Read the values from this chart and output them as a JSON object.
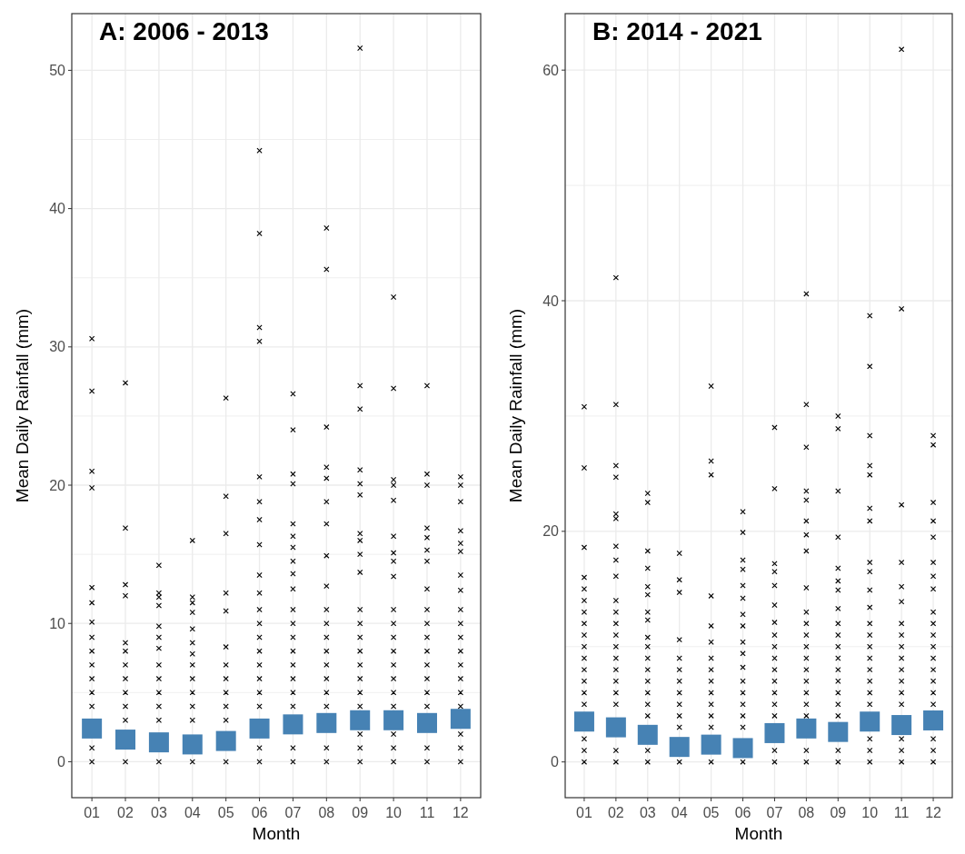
{
  "chart_data": [
    {
      "type": "scatter",
      "title": "A: 2006 - 2013",
      "xlabel": "Month",
      "ylabel": "Mean Daily Rainfall (mm)",
      "categories": [
        "01",
        "02",
        "03",
        "04",
        "05",
        "06",
        "07",
        "08",
        "09",
        "10",
        "11",
        "12"
      ],
      "ylim": [
        -2.6,
        54.1
      ],
      "yticks": [
        0,
        10,
        20,
        30,
        40,
        50
      ],
      "grid": true,
      "series": [
        {
          "type": "scatter",
          "marker": "cross",
          "color": "#000000",
          "x": [
            "01",
            "01",
            "01",
            "01",
            "01",
            "01",
            "01",
            "01",
            "01",
            "01",
            "01",
            "01",
            "01",
            "01",
            "01",
            "02",
            "02",
            "02",
            "02",
            "02",
            "02",
            "02",
            "02",
            "02",
            "02",
            "02",
            "02",
            "03",
            "03",
            "03",
            "03",
            "03",
            "03",
            "03",
            "03",
            "03",
            "03",
            "03",
            "03",
            "03",
            "04",
            "04",
            "04",
            "04",
            "04",
            "04",
            "04",
            "04",
            "04",
            "04",
            "04",
            "04",
            "04",
            "05",
            "05",
            "05",
            "05",
            "05",
            "05",
            "05",
            "05",
            "05",
            "05",
            "05",
            "05",
            "06",
            "06",
            "06",
            "06",
            "06",
            "06",
            "06",
            "06",
            "06",
            "06",
            "06",
            "06",
            "06",
            "06",
            "06",
            "06",
            "06",
            "06",
            "06",
            "06",
            "07",
            "07",
            "07",
            "07",
            "07",
            "07",
            "07",
            "07",
            "07",
            "07",
            "07",
            "07",
            "07",
            "07",
            "07",
            "07",
            "07",
            "07",
            "07",
            "07",
            "08",
            "08",
            "08",
            "08",
            "08",
            "08",
            "08",
            "08",
            "08",
            "08",
            "08",
            "08",
            "08",
            "08",
            "08",
            "08",
            "08",
            "08",
            "08",
            "09",
            "09",
            "09",
            "09",
            "09",
            "09",
            "09",
            "09",
            "09",
            "09",
            "09",
            "09",
            "09",
            "09",
            "09",
            "09",
            "09",
            "09",
            "09",
            "09",
            "09",
            "10",
            "10",
            "10",
            "10",
            "10",
            "10",
            "10",
            "10",
            "10",
            "10",
            "10",
            "10",
            "10",
            "10",
            "10",
            "10",
            "10",
            "10",
            "10",
            "10",
            "11",
            "11",
            "11",
            "11",
            "11",
            "11",
            "11",
            "11",
            "11",
            "11",
            "11",
            "11",
            "11",
            "11",
            "11",
            "11",
            "11",
            "11",
            "12",
            "12",
            "12",
            "12",
            "12",
            "12",
            "12",
            "12",
            "12",
            "12",
            "12",
            "12",
            "12",
            "12",
            "12",
            "12",
            "12",
            "12",
            "12"
          ],
          "values": [
            30.6,
            26.8,
            21.0,
            19.8,
            12.6,
            11.5,
            10.1,
            9,
            8,
            7,
            6,
            5,
            4,
            1,
            0,
            27.4,
            16.9,
            12.8,
            12.0,
            8.6,
            8,
            7,
            6,
            5,
            4,
            3,
            0,
            14.2,
            12.2,
            11.9,
            11.3,
            9.8,
            9.0,
            8.2,
            7,
            6,
            5,
            4,
            3,
            0,
            16.0,
            11.9,
            11.5,
            10.8,
            9.6,
            8.6,
            7.8,
            7,
            6,
            5,
            4,
            3,
            0,
            26.3,
            19.2,
            16.5,
            12.2,
            10.9,
            8.3,
            7,
            6,
            5,
            4,
            3,
            0,
            44.2,
            38.2,
            31.4,
            30.4,
            20.6,
            18.8,
            17.5,
            15.7,
            13.5,
            12.2,
            11,
            10,
            9,
            8,
            7,
            6,
            5,
            4,
            1,
            0,
            26.6,
            24.0,
            20.8,
            20.1,
            17.2,
            16.3,
            15.5,
            14.5,
            13.6,
            12.5,
            11,
            10,
            9,
            8,
            7,
            6,
            5,
            4,
            1,
            0,
            38.6,
            35.6,
            24.2,
            21.3,
            20.5,
            18.8,
            17.2,
            14.9,
            12.7,
            11,
            10,
            9,
            8,
            7,
            6,
            5,
            4,
            1,
            0,
            51.6,
            27.2,
            25.5,
            21.1,
            20.1,
            19.3,
            16.5,
            16.0,
            15.0,
            13.7,
            11,
            10,
            9,
            8,
            7,
            6,
            5,
            4,
            2,
            1,
            0,
            33.6,
            27.0,
            20.4,
            20.0,
            18.9,
            16.3,
            15.1,
            14.5,
            13.4,
            11,
            10,
            9,
            8,
            7,
            6,
            5,
            4,
            2,
            1,
            0,
            27.2,
            20.8,
            20.0,
            16.9,
            16.2,
            15.3,
            14.5,
            12.5,
            11,
            10,
            9,
            8,
            7,
            6,
            5,
            4,
            1,
            0,
            20.6,
            20.0,
            18.8,
            16.7,
            15.8,
            15.2,
            13.5,
            12.4,
            11,
            10,
            9,
            8,
            7,
            6,
            5,
            4,
            2,
            1,
            0
          ]
        },
        {
          "type": "scatter",
          "marker": "square",
          "color": "#4682b4",
          "x": [
            "01",
            "02",
            "03",
            "04",
            "05",
            "06",
            "07",
            "08",
            "09",
            "10",
            "11",
            "12"
          ],
          "values": [
            2.4,
            1.6,
            1.4,
            1.25,
            1.5,
            2.4,
            2.7,
            2.8,
            3.0,
            3.0,
            2.8,
            3.1
          ]
        }
      ]
    },
    {
      "type": "scatter",
      "title": "B: 2014 - 2021",
      "xlabel": "Month",
      "ylabel": "Mean Daily Rainfall (mm)",
      "categories": [
        "01",
        "02",
        "03",
        "04",
        "05",
        "06",
        "07",
        "08",
        "09",
        "10",
        "11",
        "12"
      ],
      "ylim": [
        -3.1,
        64.9
      ],
      "yticks": [
        0,
        20,
        40,
        60
      ],
      "grid": true,
      "series": [
        {
          "type": "scatter",
          "marker": "cross",
          "color": "#000000",
          "x": [
            "01",
            "01",
            "01",
            "01",
            "01",
            "01",
            "01",
            "01",
            "01",
            "01",
            "01",
            "01",
            "01",
            "01",
            "01",
            "01",
            "01",
            "01",
            "02",
            "02",
            "02",
            "02",
            "02",
            "02",
            "02",
            "02",
            "02",
            "02",
            "02",
            "02",
            "02",
            "02",
            "02",
            "02",
            "02",
            "02",
            "02",
            "02",
            "02",
            "03",
            "03",
            "03",
            "03",
            "03",
            "03",
            "03",
            "03",
            "03",
            "03",
            "03",
            "03",
            "03",
            "03",
            "03",
            "03",
            "03",
            "03",
            "04",
            "04",
            "04",
            "04",
            "04",
            "04",
            "04",
            "04",
            "04",
            "04",
            "04",
            "04",
            "05",
            "05",
            "05",
            "05",
            "05",
            "05",
            "05",
            "05",
            "05",
            "05",
            "05",
            "05",
            "05",
            "05",
            "06",
            "06",
            "06",
            "06",
            "06",
            "06",
            "06",
            "06",
            "06",
            "06",
            "06",
            "06",
            "06",
            "06",
            "06",
            "06",
            "06",
            "07",
            "07",
            "07",
            "07",
            "07",
            "07",
            "07",
            "07",
            "07",
            "07",
            "07",
            "07",
            "07",
            "07",
            "07",
            "07",
            "07",
            "08",
            "08",
            "08",
            "08",
            "08",
            "08",
            "08",
            "08",
            "08",
            "08",
            "08",
            "08",
            "08",
            "08",
            "08",
            "08",
            "08",
            "08",
            "08",
            "08",
            "08",
            "09",
            "09",
            "09",
            "09",
            "09",
            "09",
            "09",
            "09",
            "09",
            "09",
            "09",
            "09",
            "09",
            "09",
            "09",
            "09",
            "09",
            "09",
            "09",
            "10",
            "10",
            "10",
            "10",
            "10",
            "10",
            "10",
            "10",
            "10",
            "10",
            "10",
            "10",
            "10",
            "10",
            "10",
            "10",
            "10",
            "10",
            "10",
            "10",
            "10",
            "10",
            "11",
            "11",
            "11",
            "11",
            "11",
            "11",
            "11",
            "11",
            "11",
            "11",
            "11",
            "11",
            "11",
            "11",
            "11",
            "11",
            "11",
            "12",
            "12",
            "12",
            "12",
            "12",
            "12",
            "12",
            "12",
            "12",
            "12",
            "12",
            "12",
            "12",
            "12",
            "12",
            "12",
            "12",
            "12",
            "12",
            "12"
          ],
          "values": [
            30.8,
            25.5,
            18.6,
            16,
            15,
            14,
            13,
            12,
            11,
            10,
            9,
            8,
            7,
            6,
            5,
            2,
            1,
            0,
            42.0,
            31.0,
            25.7,
            24.7,
            21.5,
            21.1,
            18.7,
            17.5,
            16.1,
            14,
            13,
            12,
            11,
            10,
            9,
            8,
            7,
            6,
            5,
            1,
            0,
            23.3,
            22.5,
            18.3,
            16.8,
            15.2,
            14.5,
            13.0,
            12.3,
            10.8,
            10,
            9,
            8,
            7,
            6,
            5,
            4,
            1,
            0,
            18.1,
            15.8,
            14.7,
            10.6,
            9,
            8,
            7,
            6,
            5,
            4,
            3,
            0,
            32.6,
            26.1,
            24.9,
            14.4,
            11.8,
            10.4,
            9,
            8,
            7,
            6,
            5,
            4,
            3,
            0,
            21.7,
            19.9,
            17.5,
            16.7,
            15.3,
            14.2,
            12.8,
            11.8,
            10.4,
            9.4,
            8.2,
            7,
            6,
            5,
            4,
            3,
            0,
            29.0,
            23.7,
            17.2,
            16.5,
            15.3,
            13.6,
            12.1,
            11,
            10,
            9,
            8,
            7,
            6,
            5,
            4,
            1,
            0,
            40.6,
            31.0,
            27.3,
            23.5,
            22.7,
            20.9,
            19.7,
            18.3,
            15.1,
            13,
            12,
            11,
            10,
            9,
            8,
            7,
            6,
            5,
            4,
            1,
            0,
            30.0,
            28.9,
            23.5,
            19.5,
            16.8,
            15.7,
            14.9,
            13.3,
            12,
            11,
            10,
            9,
            8,
            7,
            6,
            5,
            4,
            1,
            0,
            38.7,
            34.3,
            28.3,
            25.7,
            24.9,
            22.0,
            20.9,
            17.3,
            16.5,
            14.9,
            13.4,
            12,
            11,
            10,
            9,
            8,
            7,
            6,
            5,
            2,
            1,
            0,
            61.8,
            39.3,
            22.3,
            17.3,
            15.2,
            13.9,
            12,
            11,
            10,
            9,
            8,
            7,
            6,
            5,
            2,
            1,
            0,
            28.3,
            27.5,
            22.5,
            20.9,
            19.5,
            17.3,
            16.1,
            15.0,
            13,
            12,
            11,
            10,
            9,
            8,
            7,
            6,
            5,
            2,
            1,
            0
          ]
        },
        {
          "type": "scatter",
          "marker": "square",
          "color": "#4682b4",
          "x": [
            "01",
            "02",
            "03",
            "04",
            "05",
            "06",
            "07",
            "08",
            "09",
            "10",
            "11",
            "12"
          ],
          "values": [
            3.5,
            3.0,
            2.35,
            1.3,
            1.5,
            1.2,
            2.5,
            2.9,
            2.6,
            3.5,
            3.2,
            3.6
          ]
        }
      ]
    }
  ]
}
